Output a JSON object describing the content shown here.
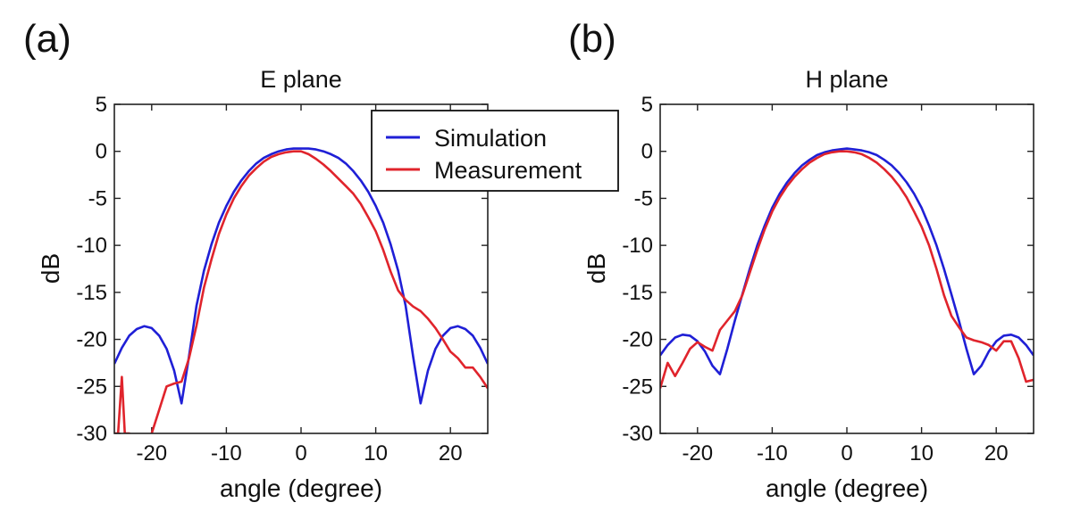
{
  "chart_data": [
    {
      "type": "line",
      "panel_label": "(a)",
      "title": "E plane",
      "xlabel": "angle (degree)",
      "ylabel": "dB",
      "xlim": [
        -25,
        25
      ],
      "ylim": [
        -30,
        5
      ],
      "xticks": [
        -20,
        -10,
        0,
        10,
        20
      ],
      "yticks": [
        5,
        0,
        -5,
        -10,
        -15,
        -20,
        -25,
        -30
      ],
      "series": [
        {
          "name": "Simulation",
          "color": "#1f1fd6",
          "x": [
            -25,
            -24,
            -23,
            -22,
            -21,
            -20,
            -19,
            -18,
            -17,
            -16,
            -15,
            -14,
            -13,
            -12,
            -11,
            -10,
            -9,
            -8,
            -7,
            -6,
            -5,
            -4,
            -3,
            -2,
            -1,
            0,
            1,
            2,
            3,
            4,
            5,
            6,
            7,
            8,
            9,
            10,
            11,
            12,
            13,
            14,
            15,
            16,
            17,
            18,
            19,
            20,
            21,
            22,
            23,
            24,
            25
          ],
          "y": [
            -22.6,
            -20.9,
            -19.6,
            -18.9,
            -18.6,
            -18.8,
            -19.6,
            -21.0,
            -23.3,
            -26.8,
            -21.8,
            -16.4,
            -12.7,
            -9.9,
            -7.6,
            -5.8,
            -4.3,
            -3.1,
            -2.1,
            -1.3,
            -0.7,
            -0.3,
            0.0,
            0.2,
            0.3,
            0.3,
            0.3,
            0.2,
            0.0,
            -0.3,
            -0.7,
            -1.3,
            -2.1,
            -3.1,
            -4.3,
            -5.8,
            -7.6,
            -9.9,
            -12.7,
            -16.4,
            -21.8,
            -26.8,
            -23.3,
            -21.0,
            -19.6,
            -18.8,
            -18.6,
            -18.9,
            -19.6,
            -20.9,
            -22.6
          ]
        },
        {
          "name": "Measurement",
          "color": "#e0242c",
          "x": [
            -25,
            -24.5,
            -24,
            -23.6,
            -23,
            -22,
            -21,
            -20,
            -19,
            -18,
            -17,
            -16,
            -15,
            -14,
            -13,
            -12,
            -11,
            -10,
            -9,
            -8,
            -7,
            -6,
            -5,
            -4,
            -3,
            -2,
            -1,
            0,
            1,
            2,
            3,
            4,
            5,
            6,
            7,
            8,
            9,
            10,
            11,
            12,
            13,
            14,
            15,
            16,
            17,
            18,
            19,
            20,
            21,
            22,
            23,
            24,
            25
          ],
          "y": [
            -30,
            -30,
            -24.0,
            -30,
            -30,
            -31,
            -31,
            -30,
            -27.5,
            -25.0,
            -24.7,
            -24.5,
            -22.0,
            -18.5,
            -14.5,
            -11.5,
            -8.8,
            -6.7,
            -5.0,
            -3.7,
            -2.6,
            -1.8,
            -1.1,
            -0.6,
            -0.3,
            -0.1,
            0.0,
            0.0,
            -0.3,
            -0.8,
            -1.4,
            -2.1,
            -2.9,
            -3.7,
            -4.5,
            -5.6,
            -7.0,
            -8.5,
            -10.5,
            -12.8,
            -14.8,
            -15.8,
            -16.5,
            -17.0,
            -17.8,
            -18.8,
            -20.0,
            -21.3,
            -22.0,
            -23.0,
            -23.0,
            -24.0,
            -25.2
          ]
        }
      ],
      "legend": {
        "position": "top-right",
        "entries": [
          "Simulation",
          "Measurement"
        ]
      }
    },
    {
      "type": "line",
      "panel_label": "(b)",
      "title": "H plane",
      "xlabel": "angle  (degree)",
      "ylabel": "dB",
      "xlim": [
        -25,
        25
      ],
      "ylim": [
        -30,
        5
      ],
      "xticks": [
        -20,
        -10,
        0,
        10,
        20
      ],
      "yticks": [
        5,
        0,
        -5,
        -10,
        -15,
        -20,
        -25,
        -30
      ],
      "series": [
        {
          "name": "Simulation",
          "color": "#1f1fd6",
          "x": [
            -25,
            -24,
            -23,
            -22,
            -21,
            -20,
            -19,
            -18,
            -17,
            -16,
            -15,
            -14,
            -13,
            -12,
            -11,
            -10,
            -9,
            -8,
            -7,
            -6,
            -5,
            -4,
            -3,
            -2,
            -1,
            0,
            1,
            2,
            3,
            4,
            5,
            6,
            7,
            8,
            9,
            10,
            11,
            12,
            13,
            14,
            15,
            16,
            17,
            18,
            19,
            20,
            21,
            22,
            23,
            24,
            25
          ],
          "y": [
            -21.7,
            -20.6,
            -19.8,
            -19.5,
            -19.6,
            -20.2,
            -21.3,
            -22.8,
            -23.7,
            -21.0,
            -18.0,
            -15.2,
            -12.5,
            -10.0,
            -7.9,
            -6.0,
            -4.5,
            -3.3,
            -2.3,
            -1.5,
            -0.9,
            -0.4,
            -0.1,
            0.1,
            0.2,
            0.3,
            0.2,
            0.1,
            -0.1,
            -0.4,
            -0.9,
            -1.5,
            -2.3,
            -3.3,
            -4.5,
            -6.0,
            -7.9,
            -10.0,
            -12.5,
            -15.2,
            -18.0,
            -21.0,
            -23.7,
            -22.8,
            -21.3,
            -20.2,
            -19.6,
            -19.5,
            -19.8,
            -20.6,
            -21.7
          ]
        },
        {
          "name": "Measurement",
          "color": "#e0242c",
          "x": [
            -25,
            -24,
            -23,
            -22,
            -21,
            -20,
            -19,
            -18,
            -17,
            -16,
            -15,
            -14,
            -13,
            -12,
            -11,
            -10,
            -9,
            -8,
            -7,
            -6,
            -5,
            -4,
            -3,
            -2,
            -1,
            0,
            1,
            2,
            3,
            4,
            5,
            6,
            7,
            8,
            9,
            10,
            11,
            12,
            13,
            14,
            15,
            16,
            17,
            18,
            19,
            20,
            21,
            22,
            23,
            24,
            25
          ],
          "y": [
            -25.2,
            -22.5,
            -23.9,
            -22.5,
            -21.0,
            -20.3,
            -20.8,
            -21.2,
            -19.0,
            -18.0,
            -17.0,
            -15.3,
            -12.9,
            -10.5,
            -8.3,
            -6.4,
            -4.9,
            -3.7,
            -2.7,
            -1.9,
            -1.2,
            -0.7,
            -0.3,
            -0.1,
            0.0,
            0.0,
            -0.1,
            -0.3,
            -0.7,
            -1.2,
            -1.9,
            -2.7,
            -3.7,
            -4.9,
            -6.4,
            -8.0,
            -10.0,
            -12.5,
            -15.3,
            -17.5,
            -18.7,
            -19.8,
            -20.1,
            -20.3,
            -20.6,
            -21.2,
            -20.2,
            -20.2,
            -22.0,
            -24.5,
            -24.3
          ]
        }
      ]
    }
  ]
}
